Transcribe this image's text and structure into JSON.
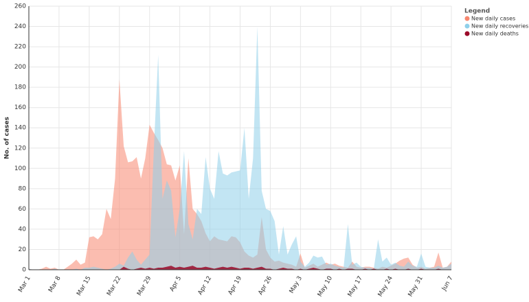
{
  "chart_data": {
    "type": "area",
    "y_label": "No. of cases",
    "legend_title": "Legend",
    "grid": true,
    "x": [
      "Mar 1",
      "Mar 2",
      "Mar 3",
      "Mar 4",
      "Mar 5",
      "Mar 6",
      "Mar 7",
      "Mar 8",
      "Mar 9",
      "Mar 10",
      "Mar 11",
      "Mar 12",
      "Mar 13",
      "Mar 14",
      "Mar 15",
      "Mar 16",
      "Mar 17",
      "Mar 18",
      "Mar 19",
      "Mar 20",
      "Mar 21",
      "Mar 22",
      "Mar 23",
      "Mar 24",
      "Mar 25",
      "Mar 26",
      "Mar 27",
      "Mar 28",
      "Mar 29",
      "Mar 30",
      "Mar 31",
      "Apr 1",
      "Apr 2",
      "Apr 3",
      "Apr 4",
      "Apr 5",
      "Apr 6",
      "Apr 7",
      "Apr 8",
      "Apr 9",
      "Apr 10",
      "Apr 11",
      "Apr 12",
      "Apr 13",
      "Apr 14",
      "Apr 15",
      "Apr 16",
      "Apr 17",
      "Apr 18",
      "Apr 19",
      "Apr 20",
      "Apr 21",
      "Apr 22",
      "Apr 23",
      "Apr 24",
      "Apr 25",
      "Apr 26",
      "Apr 27",
      "Apr 28",
      "Apr 29",
      "Apr 30",
      "May 1",
      "May 2",
      "May 3",
      "May 4",
      "May 5",
      "May 6",
      "May 7",
      "May 8",
      "May 9",
      "May 10",
      "May 11",
      "May 12",
      "May 13",
      "May 14",
      "May 15",
      "May 16",
      "May 17",
      "May 18",
      "May 19",
      "May 20",
      "May 21",
      "May 22",
      "May 23",
      "May 24",
      "May 25",
      "May 26",
      "May 27",
      "May 28",
      "May 29",
      "May 30",
      "May 31",
      "Jun 1",
      "Jun 2",
      "Jun 3",
      "Jun 4",
      "Jun 5",
      "Jun 6",
      "Jun 7"
    ],
    "ylim": [
      0,
      260
    ],
    "yticks": [
      0,
      20,
      40,
      60,
      80,
      100,
      120,
      140,
      160,
      180,
      200,
      220,
      240,
      260
    ],
    "series": [
      {
        "name": "New daily cases",
        "color": "#f7876f",
        "values": [
          1,
          0,
          0,
          1,
          3,
          1,
          2,
          0,
          0,
          3,
          6,
          10,
          5,
          7,
          32,
          33,
          30,
          35,
          60,
          50,
          90,
          188,
          122,
          106,
          107,
          111,
          90,
          110,
          143,
          135,
          128,
          120,
          104,
          103,
          88,
          103,
          35,
          110,
          60,
          55,
          48,
          36,
          28,
          33,
          30,
          29,
          28,
          33,
          32,
          27,
          18,
          14,
          12,
          15,
          52,
          20,
          12,
          8,
          9,
          7,
          6,
          5,
          3,
          16,
          2,
          4,
          6,
          3,
          5,
          7,
          5,
          6,
          4,
          3,
          2,
          8,
          3,
          2,
          3,
          3,
          2,
          1,
          3,
          2,
          4,
          6,
          9,
          11,
          12,
          5,
          2,
          3,
          1,
          2,
          3,
          17,
          2,
          3,
          8
        ]
      },
      {
        "name": "New daily recoveries",
        "color": "#8fd0ea",
        "values": [
          1,
          0,
          0,
          0,
          0,
          0,
          1,
          0,
          0,
          0,
          0,
          1,
          0,
          2,
          2,
          3,
          2,
          1,
          0,
          1,
          3,
          6,
          4,
          12,
          18,
          10,
          5,
          10,
          15,
          120,
          212,
          70,
          88,
          78,
          32,
          60,
          117,
          45,
          30,
          60,
          55,
          111,
          80,
          70,
          117,
          95,
          93,
          96,
          97,
          98,
          140,
          70,
          110,
          240,
          78,
          60,
          58,
          48,
          15,
          43,
          15,
          25,
          33,
          8,
          3,
          7,
          14,
          12,
          13,
          5,
          6,
          4,
          3,
          2,
          45,
          5,
          7,
          3,
          2,
          2,
          1,
          30,
          8,
          12,
          5,
          7,
          4,
          3,
          8,
          4,
          3,
          16,
          3,
          2,
          2,
          4,
          2,
          3,
          6
        ]
      },
      {
        "name": "New daily deaths",
        "color": "#9b0a2a",
        "values": [
          0,
          0,
          0,
          0,
          0,
          0,
          0,
          0,
          0,
          0,
          0,
          0,
          0,
          0,
          0,
          0,
          0,
          0,
          0,
          0,
          0,
          0,
          3,
          1,
          0,
          1,
          2,
          1,
          2,
          1,
          2,
          2,
          3,
          4,
          2,
          3,
          2,
          3,
          4,
          2,
          2,
          3,
          2,
          1,
          2,
          3,
          2,
          3,
          2,
          1,
          2,
          2,
          1,
          2,
          3,
          1,
          1,
          0,
          1,
          2,
          1,
          1,
          0,
          1,
          0,
          1,
          2,
          1,
          0,
          1,
          1,
          0,
          1,
          0,
          1,
          1,
          0,
          0,
          1,
          0,
          1,
          0,
          0,
          1,
          0,
          1,
          0,
          0,
          1,
          0,
          0,
          1,
          0,
          0,
          0,
          1,
          0,
          0,
          0
        ]
      }
    ]
  }
}
